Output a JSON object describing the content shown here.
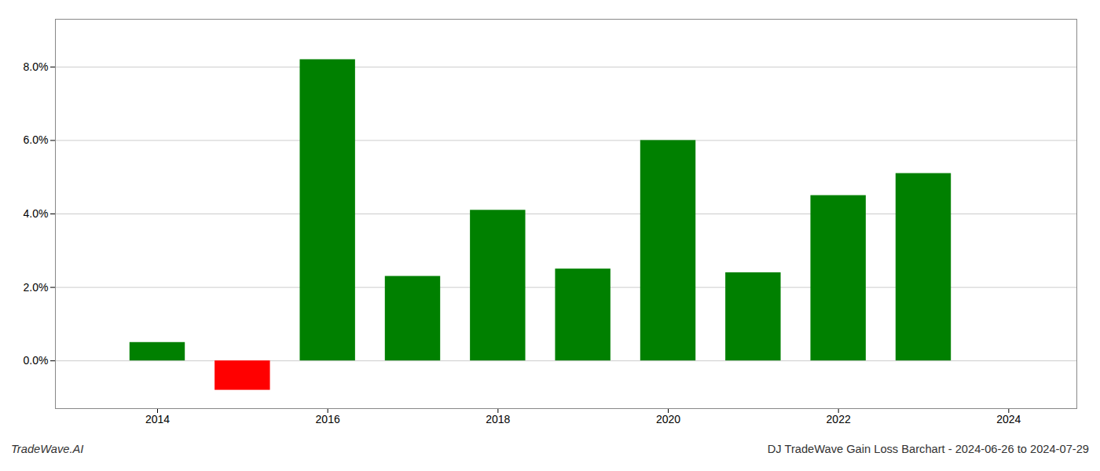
{
  "chart_data": {
    "type": "bar",
    "x": [
      2014,
      2015,
      2016,
      2017,
      2018,
      2019,
      2020,
      2021,
      2022,
      2023
    ],
    "values": [
      0.005,
      -0.008,
      0.082,
      0.023,
      0.041,
      0.025,
      0.06,
      0.024,
      0.045,
      0.051
    ],
    "colors": [
      "#008000",
      "#ff0000",
      "#008000",
      "#008000",
      "#008000",
      "#008000",
      "#008000",
      "#008000",
      "#008000",
      "#008000"
    ],
    "xlim": [
      2012.8,
      2024.8
    ],
    "xticks": [
      2014,
      2016,
      2018,
      2020,
      2022,
      2024
    ],
    "ylim": [
      -0.013,
      0.093
    ],
    "yticks": [
      {
        "value": 0.0,
        "label": "0.0%"
      },
      {
        "value": 0.02,
        "label": "2.0%"
      },
      {
        "value": 0.04,
        "label": "4.0%"
      },
      {
        "value": 0.06,
        "label": "6.0%"
      },
      {
        "value": 0.08,
        "label": "8.0%"
      }
    ],
    "grid": true,
    "annotations": [
      "TradeWave.AI",
      "DJ TradeWave Gain Loss Barchart - 2024-06-26 to 2024-07-29"
    ]
  }
}
